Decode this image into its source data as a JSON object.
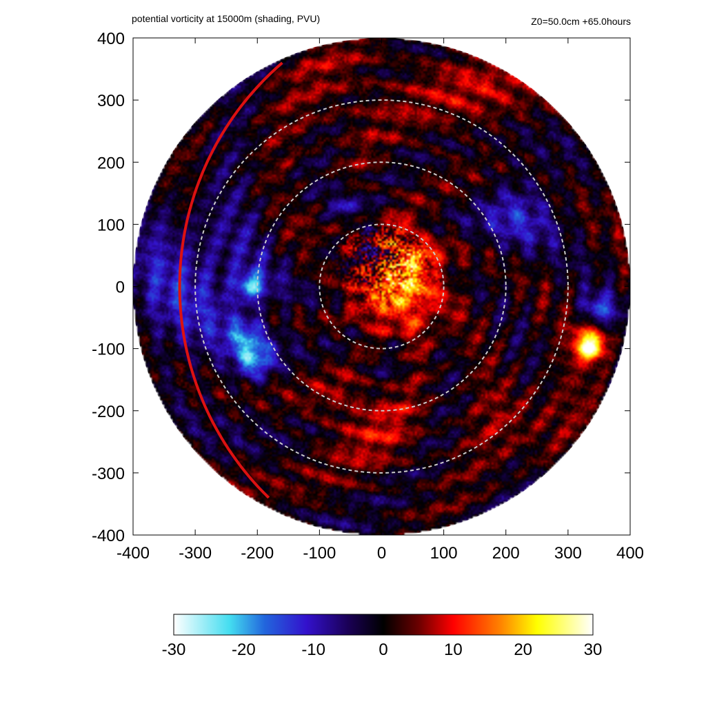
{
  "chart_data": {
    "type": "heatmap",
    "title": "potential vorticity at 15000m (shading, PVU)",
    "subtitle": "Z0=50.0cm  +65.0hours",
    "xlabel": "",
    "ylabel": "",
    "xlim": [
      -400,
      400
    ],
    "ylim": [
      -400,
      400
    ],
    "x_ticks": [
      -400,
      -300,
      -200,
      -100,
      0,
      100,
      200,
      300,
      400
    ],
    "y_ticks": [
      -400,
      -300,
      -200,
      -100,
      0,
      100,
      200,
      300,
      400
    ],
    "x_tick_labels": [
      "-400",
      "-300",
      "-200",
      "-100",
      "0",
      "100",
      "200",
      "300",
      "400"
    ],
    "y_tick_labels": [
      "-400",
      "-300",
      "-200",
      "-100",
      "0",
      "100",
      "200",
      "300",
      "400"
    ],
    "domain_radius": 400,
    "reference_circles": [
      {
        "radius": 100,
        "style": "dashed",
        "color": "#cccccc"
      },
      {
        "radius": 200,
        "style": "dashed",
        "color": "#cccccc"
      },
      {
        "radius": 300,
        "style": "dashed",
        "color": "#cccccc"
      }
    ],
    "red_arc": {
      "color": "#dd1111",
      "center": [
        150,
        0
      ],
      "radius": 475,
      "from_y": -340,
      "to_y": 360
    },
    "colorbar": {
      "range": [
        -30,
        30
      ],
      "ticks": [
        -30,
        -20,
        -10,
        0,
        10,
        20,
        30
      ],
      "tick_labels": [
        "-30",
        "-20",
        "-10",
        "0",
        "10",
        "20",
        "30"
      ],
      "colors": [
        {
          "value": -30,
          "color": "#ffffff"
        },
        {
          "value": -22,
          "color": "#44ddf0"
        },
        {
          "value": -17,
          "color": "#2266dd"
        },
        {
          "value": -11,
          "color": "#3311cc"
        },
        {
          "value": -5,
          "color": "#1a0055"
        },
        {
          "value": 0,
          "color": "#000000"
        },
        {
          "value": 5,
          "color": "#6a0000"
        },
        {
          "value": 10,
          "color": "#ff0000"
        },
        {
          "value": 17,
          "color": "#ff8800"
        },
        {
          "value": 22,
          "color": "#ffff00"
        },
        {
          "value": 30,
          "color": "#ffffff"
        }
      ]
    },
    "features": [
      {
        "x": 20,
        "y": 40,
        "sigma": 40,
        "value": 22
      },
      {
        "x": 0,
        "y": 45,
        "sigma": 28,
        "value": -20
      },
      {
        "x": 30,
        "y": -30,
        "sigma": 55,
        "value": 11
      },
      {
        "x": -20,
        "y": -200,
        "sigma": 60,
        "value": 8
      },
      {
        "x": 340,
        "y": -80,
        "sigma": 22,
        "value": 14
      },
      {
        "x": 335,
        "y": -100,
        "sigma": 14,
        "value": 22
      },
      {
        "x": 350,
        "y": -40,
        "sigma": 20,
        "value": -14
      },
      {
        "x": -205,
        "y": -120,
        "sigma": 22,
        "value": -15
      },
      {
        "x": -210,
        "y": 0,
        "sigma": 16,
        "value": -18
      },
      {
        "x": -220,
        "y": -80,
        "sigma": 22,
        "value": -10
      },
      {
        "x": -110,
        "y": 100,
        "sigma": 26,
        "value": 6
      },
      {
        "x": -60,
        "y": 130,
        "sigma": 20,
        "value": -12
      },
      {
        "x": 220,
        "y": 120,
        "sigma": 45,
        "value": -10
      },
      {
        "x": 240,
        "y": -220,
        "sigma": 50,
        "value": 6
      },
      {
        "x": -300,
        "y": 0,
        "sigma": 90,
        "value": -10
      },
      {
        "x": 150,
        "y": 320,
        "sigma": 70,
        "value": 5
      },
      {
        "x": -60,
        "y": 320,
        "sigma": 70,
        "value": 4
      },
      {
        "x": 0,
        "y": -120,
        "sigma": 45,
        "value": -6
      }
    ]
  }
}
